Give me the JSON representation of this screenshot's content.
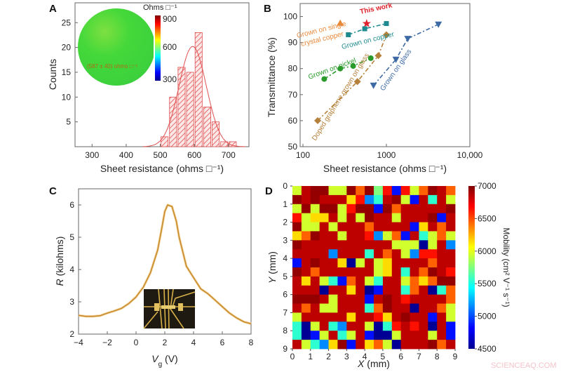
{
  "panels": {
    "a": "A",
    "b": "B",
    "c": "C",
    "d": "D"
  },
  "watermark": "SCIENCEAQ.COM",
  "chart_data": [
    {
      "panel": "A",
      "type": "bar",
      "xlabel": "Sheet resistance (ohms □⁻¹)",
      "ylabel": "Counts",
      "xlim": [
        250,
        760
      ],
      "ylim": [
        0,
        29
      ],
      "xticks": [
        300,
        400,
        500,
        600,
        700
      ],
      "yticks": [
        5,
        10,
        15,
        20,
        25
      ],
      "bin_width": 25,
      "bins": [
        500,
        525,
        550,
        575,
        600,
        625,
        650,
        675,
        700
      ],
      "counts": [
        2,
        10,
        16,
        15,
        23,
        8,
        5,
        1,
        1
      ],
      "fit": {
        "type": "gaussian",
        "peak": 20.2,
        "mean": 595,
        "sigma": 40
      },
      "bar_color": "#e05050",
      "inset": {
        "colorbar_title": "Ohms □⁻¹",
        "colorbar_ticks": [
          900,
          600,
          300
        ],
        "annotation": "(587 ± 40) ohms □⁻¹",
        "wafer_color": "#3fd23a"
      }
    },
    {
      "panel": "B",
      "type": "scatter",
      "xlabel": "Sheet resistance (ohms □⁻¹)",
      "ylabel": "Transmittance (%)",
      "xscale": "log",
      "xlim": [
        100,
        10000
      ],
      "ylim": [
        50,
        105
      ],
      "xticks": [
        100,
        1000,
        10000
      ],
      "xtick_labels": [
        "100",
        "1000",
        "10,000"
      ],
      "yticks": [
        50,
        60,
        70,
        80,
        90,
        100
      ],
      "series": [
        {
          "name": "Grown on single crystal copper",
          "label_lines": [
            "Grown on single",
            "crystal copper"
          ],
          "marker": "triangle-up",
          "color": "#e8893a",
          "points": [
            [
              280,
              97.5
            ]
          ]
        },
        {
          "name": "This work",
          "marker": "star",
          "color": "#e0202a",
          "points": [
            [
              580,
              97.3
            ]
          ]
        },
        {
          "name": "Grown on copper",
          "marker": "square",
          "color": "#1e8a8f",
          "points": [
            [
              350,
              93
            ],
            [
              550,
              95.3
            ],
            [
              1000,
              97.3
            ]
          ]
        },
        {
          "name": "Grown on nickel",
          "marker": "circle",
          "color": "#2a9a2a",
          "points": [
            [
              180,
              76
            ],
            [
              280,
              80
            ],
            [
              400,
              81
            ],
            [
              650,
              84
            ]
          ]
        },
        {
          "name": "Doped graphene grown on glass",
          "marker": "diamond",
          "color": "#b5803a",
          "points": [
            [
              150,
              60
            ],
            [
              450,
              75
            ],
            [
              800,
              85
            ],
            [
              1000,
              93
            ]
          ]
        },
        {
          "name": "Grown on glass",
          "marker": "triangle-down",
          "color": "#3d6aa5",
          "points": [
            [
              700,
              73.5
            ],
            [
              1300,
              83.5
            ],
            [
              1800,
              91.5
            ],
            [
              4200,
              97
            ]
          ]
        }
      ]
    },
    {
      "panel": "C",
      "type": "line",
      "xlabel_var": "V",
      "xlabel_sub": "g",
      "xlabel_unit": " (V)",
      "ylabel_var": "R",
      "ylabel_unit": " (kilohms)",
      "xlim": [
        -4,
        8
      ],
      "ylim": [
        2,
        6.5
      ],
      "xticks": [
        -4,
        -2,
        0,
        2,
        4,
        6,
        8
      ],
      "xtick_labels": [
        "−4",
        "−2",
        "0",
        "2",
        "4",
        "6",
        "8"
      ],
      "yticks": [
        2,
        3,
        4,
        5,
        6
      ],
      "color": "#c88a2a",
      "x": [
        -4,
        -3.5,
        -3,
        -2.5,
        -2,
        -1.5,
        -1,
        -0.5,
        0,
        0.5,
        1,
        1.5,
        1.8,
        2,
        2.2,
        2.5,
        2.8,
        3,
        3.5,
        4,
        4.5,
        5,
        5.5,
        6,
        6.5,
        7,
        7.5,
        8
      ],
      "y": [
        2.58,
        2.55,
        2.55,
        2.57,
        2.65,
        2.72,
        2.8,
        2.95,
        3.15,
        3.45,
        3.9,
        4.6,
        5.3,
        5.8,
        6.0,
        5.95,
        5.5,
        5.0,
        4.1,
        3.75,
        3.4,
        3.25,
        3.05,
        2.85,
        2.65,
        2.5,
        2.38,
        2.32
      ]
    },
    {
      "panel": "D",
      "type": "heatmap",
      "xlabel_var": "X",
      "xlabel_unit": " (mm)",
      "ylabel_var": "Y",
      "ylabel_unit": " (mm)",
      "xlim": [
        0,
        9
      ],
      "ylim": [
        0,
        9
      ],
      "xticks": [
        0,
        1,
        2,
        3,
        4,
        5,
        6,
        7,
        8,
        9
      ],
      "yticks": [
        0,
        1,
        2,
        3,
        4,
        5,
        6,
        7,
        8,
        9
      ],
      "colorbar_label": "Mobility  (cm² V⁻¹ s⁻¹)",
      "colorbar_range": [
        4500,
        7000
      ],
      "colorbar_ticks": [
        4500,
        5000,
        5500,
        6000,
        6500,
        7000
      ],
      "colormap": "jet",
      "values": [
        [
          5950,
          6850,
          6950,
          6950,
          5950,
          5950,
          6950,
          6450,
          6950,
          5750,
          6650,
          4850,
          6650,
          5950,
          6450,
          6950,
          6850,
          6450
        ],
        [
          6950,
          6850,
          6950,
          6850,
          6850,
          6850,
          6150,
          6650,
          5150,
          5550,
          6850,
          6950,
          5950,
          4850,
          6850,
          5550,
          6850,
          5950
        ],
        [
          5950,
          6950,
          5950,
          6950,
          6950,
          5950,
          6650,
          6950,
          6950,
          4850,
          6950,
          6450,
          6850,
          6850,
          6850,
          6850,
          6850,
          6950
        ],
        [
          6650,
          5950,
          6150,
          6150,
          6850,
          5950,
          6850,
          5950,
          6950,
          6850,
          6850,
          5950,
          6850,
          6850,
          6850,
          6950,
          4850,
          6850
        ],
        [
          6950,
          5950,
          5950,
          6850,
          5950,
          6850,
          6850,
          6850,
          6450,
          6850,
          6850,
          6850,
          6850,
          4850,
          6150,
          6850,
          6450,
          6850
        ],
        [
          6150,
          6450,
          6950,
          6850,
          6850,
          5950,
          6850,
          6850,
          6650,
          5150,
          5950,
          6450,
          4850,
          6850,
          5550,
          5950,
          6450,
          5950
        ],
        [
          6950,
          6850,
          6850,
          6850,
          6850,
          6850,
          6850,
          6850,
          6850,
          6850,
          6850,
          5950,
          5950,
          5950,
          4550,
          5950,
          6850,
          5150
        ],
        [
          6850,
          6850,
          6850,
          6850,
          5150,
          6850,
          6850,
          6850,
          5550,
          6850,
          6450,
          6850,
          5950,
          5150,
          6650,
          6650,
          6850,
          6850
        ],
        [
          4850,
          6850,
          6950,
          6850,
          6850,
          6150,
          4550,
          5950,
          6850,
          5950,
          6150,
          6850,
          6850,
          6850,
          6850,
          6450,
          6850,
          6850
        ],
        [
          6950,
          6850,
          6450,
          6850,
          6850,
          6850,
          6850,
          6850,
          6850,
          5950,
          6150,
          6850,
          5550,
          6850,
          6450,
          6950,
          6850,
          6650
        ],
        [
          6850,
          6150,
          6850,
          5950,
          5550,
          4850,
          6450,
          6850,
          5950,
          5550,
          6850,
          6850,
          5950,
          6450,
          6150,
          6450,
          6950,
          6950
        ],
        [
          6850,
          6850,
          6850,
          4550,
          6850,
          6850,
          6150,
          6850,
          4550,
          4850,
          6850,
          6850,
          5550,
          6450,
          6850,
          4550,
          5550,
          6450
        ],
        [
          6950,
          6950,
          6950,
          6850,
          5950,
          6850,
          6850,
          6850,
          4850,
          6850,
          6950,
          6850,
          6650,
          6850,
          6850,
          6850,
          6850,
          6450
        ],
        [
          6850,
          6450,
          6850,
          5950,
          5950,
          6850,
          6850,
          6850,
          5550,
          6450,
          6950,
          6850,
          6850,
          4550,
          6850,
          6850,
          6450,
          5950
        ],
        [
          5950,
          6850,
          6850,
          6850,
          6850,
          6850,
          6150,
          6850,
          6850,
          6650,
          6150,
          6850,
          6950,
          6850,
          6850,
          4850,
          6850,
          5950
        ],
        [
          5550,
          4550,
          5950,
          6850,
          5550,
          5150,
          6850,
          6850,
          5950,
          4550,
          5550,
          6650,
          6850,
          6650,
          6850,
          4550,
          6850,
          4850
        ],
        [
          5550,
          4550,
          4850,
          5950,
          6850,
          5550,
          5950,
          6850,
          4850,
          4550,
          4550,
          5950,
          6850,
          6850,
          6850,
          5950,
          6850,
          4850
        ],
        [
          6850,
          5950,
          5550,
          5150,
          6150,
          6950,
          4850,
          6850,
          6150,
          6450,
          5950,
          4550,
          6850,
          6850,
          6850,
          6950,
          6450,
          6850
        ]
      ]
    }
  ]
}
